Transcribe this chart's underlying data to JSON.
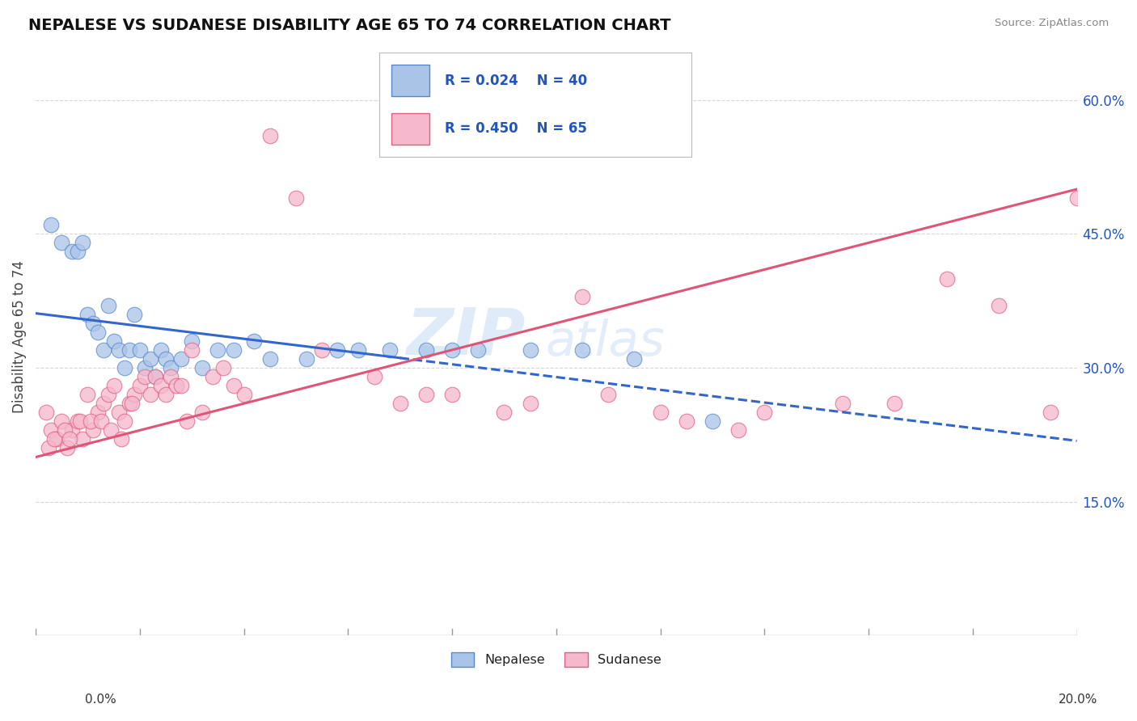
{
  "title": "NEPALESE VS SUDANESE DISABILITY AGE 65 TO 74 CORRELATION CHART",
  "source": "Source: ZipAtlas.com",
  "ylabel": "Disability Age 65 to 74",
  "xmin": 0.0,
  "xmax": 20.0,
  "ymin": 0.0,
  "ymax": 67.0,
  "yticks_right": [
    15.0,
    30.0,
    45.0,
    60.0
  ],
  "nepalese_color": "#aac4e8",
  "nepalese_edge": "#5588cc",
  "sudanese_color": "#f5b8cc",
  "sudanese_edge": "#e06080",
  "nepalese_line_color": "#3366cc",
  "sudanese_line_color": "#e05575",
  "R_nepalese": 0.024,
  "N_nepalese": 40,
  "R_sudanese": 0.45,
  "N_sudanese": 65,
  "legend_text_color": "#2255bb",
  "background_color": "#ffffff",
  "grid_color": "#cccccc",
  "watermark_color": "#ccdff5",
  "nepalese_x": [
    0.3,
    0.5,
    0.7,
    0.8,
    0.9,
    1.0,
    1.1,
    1.2,
    1.3,
    1.4,
    1.5,
    1.6,
    1.7,
    1.8,
    1.9,
    2.0,
    2.1,
    2.2,
    2.3,
    2.4,
    2.5,
    2.6,
    2.8,
    3.0,
    3.2,
    3.5,
    3.8,
    4.2,
    4.5,
    5.2,
    5.8,
    6.2,
    6.8,
    7.5,
    8.0,
    8.5,
    9.5,
    10.5,
    11.5,
    13.0
  ],
  "nepalese_y": [
    46.0,
    44.0,
    43.0,
    43.0,
    44.0,
    36.0,
    35.0,
    34.0,
    32.0,
    37.0,
    33.0,
    32.0,
    30.0,
    32.0,
    36.0,
    32.0,
    30.0,
    31.0,
    29.0,
    32.0,
    31.0,
    30.0,
    31.0,
    33.0,
    30.0,
    32.0,
    32.0,
    33.0,
    31.0,
    31.0,
    32.0,
    32.0,
    32.0,
    32.0,
    32.0,
    32.0,
    32.0,
    32.0,
    31.0,
    24.0
  ],
  "sudanese_x": [
    0.2,
    0.3,
    0.4,
    0.5,
    0.6,
    0.7,
    0.8,
    0.9,
    1.0,
    1.1,
    1.2,
    1.3,
    1.4,
    1.5,
    1.6,
    1.7,
    1.8,
    1.9,
    2.0,
    2.1,
    2.2,
    2.3,
    2.4,
    2.5,
    2.6,
    2.7,
    2.8,
    2.9,
    3.0,
    3.2,
    3.4,
    3.6,
    3.8,
    4.0,
    4.5,
    5.0,
    5.5,
    6.5,
    7.0,
    7.5,
    8.0,
    9.0,
    9.5,
    10.5,
    11.0,
    12.0,
    12.5,
    13.5,
    14.0,
    15.5,
    16.5,
    17.5,
    18.5,
    19.5,
    20.0,
    0.25,
    0.35,
    0.55,
    0.65,
    0.85,
    1.05,
    1.25,
    1.45,
    1.65,
    1.85
  ],
  "sudanese_y": [
    25.0,
    23.0,
    22.0,
    24.0,
    21.0,
    23.0,
    24.0,
    22.0,
    27.0,
    23.0,
    25.0,
    26.0,
    27.0,
    28.0,
    25.0,
    24.0,
    26.0,
    27.0,
    28.0,
    29.0,
    27.0,
    29.0,
    28.0,
    27.0,
    29.0,
    28.0,
    28.0,
    24.0,
    32.0,
    25.0,
    29.0,
    30.0,
    28.0,
    27.0,
    56.0,
    49.0,
    32.0,
    29.0,
    26.0,
    27.0,
    27.0,
    25.0,
    26.0,
    38.0,
    27.0,
    25.0,
    24.0,
    23.0,
    25.0,
    26.0,
    26.0,
    40.0,
    37.0,
    25.0,
    49.0,
    21.0,
    22.0,
    23.0,
    22.0,
    24.0,
    24.0,
    24.0,
    23.0,
    22.0,
    26.0
  ]
}
